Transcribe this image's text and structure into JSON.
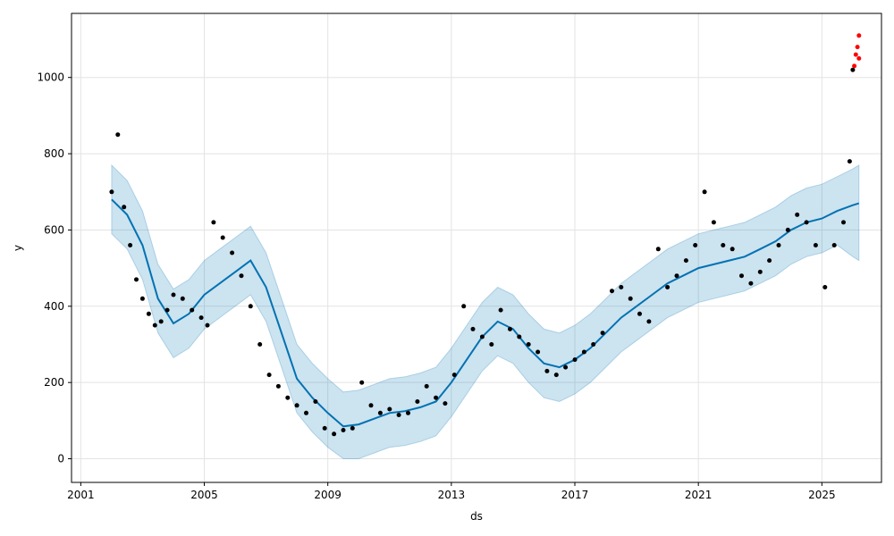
{
  "chart_data": {
    "type": "line",
    "title": "",
    "xlabel": "ds",
    "ylabel": "y",
    "xlim": [
      2000.7,
      2026.93
    ],
    "ylim": [
      -62,
      1168
    ],
    "x_ticks": [
      2001,
      2005,
      2009,
      2013,
      2017,
      2021,
      2025
    ],
    "y_ticks": [
      0,
      200,
      400,
      600,
      800,
      1000
    ],
    "grid": true,
    "colors": {
      "forecast_line": "#0072B2",
      "uncertainty_band": "#0072B2",
      "observed_points": "#000000",
      "highlight_points": "#ff0000",
      "axes": "#000000",
      "grid": "#e3e3e3"
    },
    "series": [
      {
        "role": "forecast",
        "x": [
          2002.0,
          2002.5,
          2003.0,
          2003.5,
          2004.0,
          2004.5,
          2005.0,
          2005.5,
          2006.0,
          2006.5,
          2007.0,
          2007.5,
          2008.0,
          2008.5,
          2009.0,
          2009.5,
          2010.0,
          2010.5,
          2011.0,
          2011.5,
          2012.0,
          2012.5,
          2013.0,
          2013.5,
          2014.0,
          2014.5,
          2015.0,
          2015.5,
          2016.0,
          2016.5,
          2017.0,
          2017.5,
          2018.0,
          2018.5,
          2019.0,
          2019.5,
          2020.0,
          2020.5,
          2021.0,
          2021.5,
          2022.0,
          2022.5,
          2023.0,
          2023.5,
          2024.0,
          2024.5,
          2025.0,
          2025.5,
          2026.0,
          2026.2
        ],
        "yhat": [
          680,
          640,
          560,
          420,
          355,
          380,
          430,
          460,
          490,
          520,
          450,
          330,
          210,
          160,
          120,
          85,
          90,
          105,
          120,
          125,
          135,
          150,
          200,
          260,
          320,
          360,
          340,
          290,
          250,
          240,
          260,
          290,
          330,
          370,
          400,
          430,
          460,
          480,
          500,
          510,
          520,
          530,
          550,
          570,
          600,
          620,
          630,
          650,
          665,
          670
        ],
        "band": [
          [
            770,
            590
          ],
          [
            730,
            550
          ],
          [
            650,
            470
          ],
          [
            510,
            330
          ],
          [
            445,
            265
          ],
          [
            470,
            290
          ],
          [
            520,
            340
          ],
          [
            550,
            370
          ],
          [
            580,
            400
          ],
          [
            610,
            430
          ],
          [
            540,
            360
          ],
          [
            420,
            240
          ],
          [
            300,
            120
          ],
          [
            250,
            70
          ],
          [
            210,
            30
          ],
          [
            175,
            0
          ],
          [
            180,
            0
          ],
          [
            195,
            15
          ],
          [
            210,
            30
          ],
          [
            215,
            35
          ],
          [
            225,
            45
          ],
          [
            240,
            60
          ],
          [
            290,
            110
          ],
          [
            350,
            170
          ],
          [
            410,
            230
          ],
          [
            450,
            270
          ],
          [
            430,
            250
          ],
          [
            380,
            200
          ],
          [
            340,
            160
          ],
          [
            330,
            150
          ],
          [
            350,
            170
          ],
          [
            380,
            200
          ],
          [
            420,
            240
          ],
          [
            460,
            280
          ],
          [
            490,
            310
          ],
          [
            520,
            340
          ],
          [
            550,
            370
          ],
          [
            570,
            390
          ],
          [
            590,
            410
          ],
          [
            600,
            420
          ],
          [
            610,
            430
          ],
          [
            620,
            440
          ],
          [
            640,
            460
          ],
          [
            660,
            480
          ],
          [
            690,
            510
          ],
          [
            710,
            530
          ],
          [
            720,
            540
          ],
          [
            740,
            560
          ],
          [
            760,
            530
          ],
          [
            770,
            520
          ]
        ]
      },
      {
        "role": "observed",
        "x": [
          2002.0,
          2002.2,
          2002.4,
          2002.6,
          2002.8,
          2003.0,
          2003.2,
          2003.4,
          2003.6,
          2003.8,
          2004.0,
          2004.3,
          2004.6,
          2004.9,
          2005.1,
          2005.3,
          2005.6,
          2005.9,
          2006.2,
          2006.5,
          2006.8,
          2007.1,
          2007.4,
          2007.7,
          2008.0,
          2008.3,
          2008.6,
          2008.9,
          2009.2,
          2009.5,
          2009.8,
          2010.1,
          2010.4,
          2010.7,
          2011.0,
          2011.3,
          2011.6,
          2011.9,
          2012.2,
          2012.5,
          2012.8,
          2013.1,
          2013.4,
          2013.7,
          2014.0,
          2014.3,
          2014.6,
          2014.9,
          2015.2,
          2015.5,
          2015.8,
          2016.1,
          2016.4,
          2016.7,
          2017.0,
          2017.3,
          2017.6,
          2017.9,
          2018.2,
          2018.5,
          2018.8,
          2019.1,
          2019.4,
          2019.7,
          2020.0,
          2020.3,
          2020.6,
          2020.9,
          2021.2,
          2021.5,
          2021.8,
          2022.1,
          2022.4,
          2022.7,
          2023.0,
          2023.3,
          2023.6,
          2023.9,
          2024.2,
          2024.5,
          2024.8,
          2025.1,
          2025.4,
          2025.7,
          2025.9,
          2026.0
        ],
        "y": [
          700,
          850,
          660,
          560,
          470,
          420,
          380,
          350,
          360,
          390,
          430,
          420,
          390,
          370,
          350,
          620,
          580,
          540,
          480,
          400,
          300,
          220,
          190,
          160,
          140,
          120,
          150,
          80,
          65,
          75,
          80,
          200,
          140,
          120,
          130,
          115,
          120,
          150,
          190,
          160,
          145,
          220,
          400,
          340,
          320,
          300,
          390,
          340,
          320,
          300,
          280,
          230,
          220,
          240,
          260,
          280,
          300,
          330,
          440,
          450,
          420,
          380,
          360,
          550,
          450,
          480,
          520,
          560,
          700,
          620,
          560,
          550,
          480,
          460,
          490,
          520,
          560,
          600,
          640,
          620,
          560,
          450,
          560,
          620,
          780,
          1020
        ],
        "highlight": [
          [
            2026.05,
            1030
          ],
          [
            2026.1,
            1060
          ],
          [
            2026.15,
            1080
          ],
          [
            2026.2,
            1110
          ],
          [
            2026.2,
            1050
          ]
        ]
      }
    ]
  }
}
